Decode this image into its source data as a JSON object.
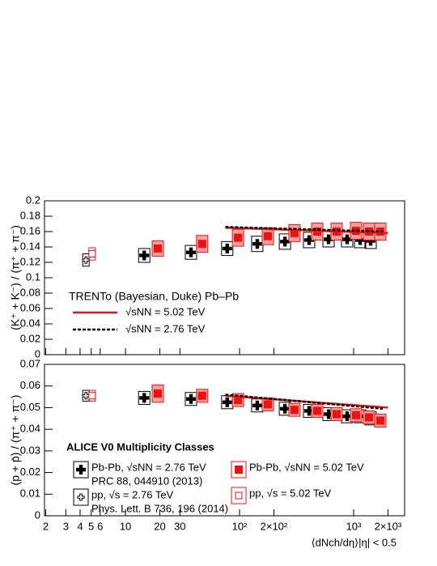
{
  "chart_data": [
    {
      "type": "scatter",
      "ylabel": "(K⁺ + K⁻) / (π⁺ + π⁻)",
      "xlim": [
        1.95,
        2800
      ],
      "xscale": "log",
      "ylim": [
        0,
        0.2
      ],
      "yticks": [
        0,
        0.02,
        0.04,
        0.06,
        0.08,
        0.1,
        0.12,
        0.14,
        0.16,
        0.18,
        0.2
      ],
      "legend_title": "TRENTo (Bayesian, Duke) Pb–Pb",
      "series": [
        {
          "marker": "cross",
          "color": "#000000",
          "x": [
            14.6,
            37.5,
            78,
            143,
            250,
            407,
            603,
            877,
            1140,
            1410
          ],
          "values": [
            0.129,
            0.133,
            0.138,
            0.144,
            0.147,
            0.149,
            0.15,
            0.15,
            0.149,
            0.148
          ],
          "errors": [
            0.009,
            0.009,
            0.009,
            0.01,
            0.01,
            0.01,
            0.01,
            0.01,
            0.01,
            0.01
          ]
        },
        {
          "marker": "square",
          "color": "#ee1111",
          "x": [
            19.2,
            47,
            97,
            177,
            303,
            480,
            710,
            1050,
            1364,
            1714
          ],
          "values": [
            0.138,
            0.144,
            0.152,
            0.154,
            0.158,
            0.16,
            0.16,
            0.161,
            0.16,
            0.16
          ],
          "errors": [
            0.01,
            0.011,
            0.011,
            0.011,
            0.011,
            0.011,
            0.011,
            0.011,
            0.011,
            0.011
          ]
        },
        {
          "marker": "open-cross",
          "color": "#000000",
          "x": [
            4.5
          ],
          "values": [
            0.123
          ],
          "errors": [
            0.008
          ]
        },
        {
          "marker": "open-square",
          "color": "#ee1111",
          "x": [
            5.1
          ],
          "values": [
            0.131
          ],
          "errors": [
            0.008
          ]
        },
        {
          "name": "√sNN = 5.02 TeV",
          "style": "solid",
          "color": "#ee1111",
          "x": [
            75,
            2000
          ],
          "values": [
            0.165,
            0.158
          ]
        },
        {
          "name": "√sNN = 2.76 TeV",
          "style": "dashed",
          "color": "#000000",
          "x": [
            75,
            1800
          ],
          "values": [
            0.166,
            0.16
          ]
        }
      ]
    },
    {
      "type": "scatter",
      "ylabel": "(p + p̄) / (π⁺ + π⁻)",
      "xlabel": "⟨dNch/dη⟩|η| < 0.5",
      "xlim": [
        1.95,
        2800
      ],
      "xscale": "log",
      "xticks": [
        2,
        3,
        4,
        5,
        6,
        10,
        20,
        30,
        {
          "value": 100,
          "label": "10²"
        },
        {
          "value": 200,
          "label": "2×10²"
        },
        {
          "value": 1000,
          "label": "10³"
        },
        {
          "value": 2000,
          "label": "2×10³"
        }
      ],
      "ylim": [
        0,
        0.07
      ],
      "yticks": [
        0,
        0.01,
        0.02,
        0.03,
        0.04,
        0.05,
        0.06,
        0.07
      ],
      "legend_title": "ALICE V0 Multiplicity Classes",
      "series": [
        {
          "name": "Pb-Pb, √sNN = 2.76 TeV",
          "reference": "PRC 88, 044910 (2013)",
          "marker": "cross",
          "color": "#000000",
          "x": [
            14.6,
            37.5,
            78,
            143,
            250,
            407,
            603,
            877,
            1140,
            1410
          ],
          "values": [
            0.0545,
            0.054,
            0.0525,
            0.051,
            0.0495,
            0.0485,
            0.047,
            0.046,
            0.046,
            0.045
          ],
          "errors": [
            0.003,
            0.003,
            0.003,
            0.003,
            0.003,
            0.003,
            0.003,
            0.003,
            0.003,
            0.003
          ]
        },
        {
          "name": "Pb-Pb, √sNN = 5.02 TeV",
          "marker": "square",
          "color": "#ee1111",
          "x": [
            19.2,
            47,
            97,
            177,
            303,
            480,
            710,
            1050,
            1364,
            1714
          ],
          "values": [
            0.0565,
            0.0555,
            0.0535,
            0.0515,
            0.049,
            0.0485,
            0.047,
            0.0465,
            0.0455,
            0.044
          ],
          "errors": [
            0.004,
            0.003,
            0.003,
            0.003,
            0.003,
            0.003,
            0.003,
            0.003,
            0.003,
            0.003
          ]
        },
        {
          "name": "pp, √s = 2.76 TeV",
          "reference": "Phys. Lett. B 736, 196 (2014)",
          "marker": "open-cross",
          "color": "#000000",
          "x": [
            4.5
          ],
          "values": [
            0.0555
          ],
          "errors": [
            0.0025
          ]
        },
        {
          "name": "pp, √s = 5.02 TeV",
          "marker": "open-square",
          "color": "#ee1111",
          "x": [
            5.1
          ],
          "values": [
            0.0555
          ],
          "errors": [
            0.0025
          ]
        },
        {
          "style": "solid",
          "color": "#ee1111",
          "x": [
            75,
            2000
          ],
          "values": [
            0.0555,
            0.05
          ]
        },
        {
          "style": "dashed",
          "color": "#000000",
          "x": [
            75,
            1800
          ],
          "values": [
            0.056,
            0.0495
          ]
        }
      ]
    }
  ]
}
